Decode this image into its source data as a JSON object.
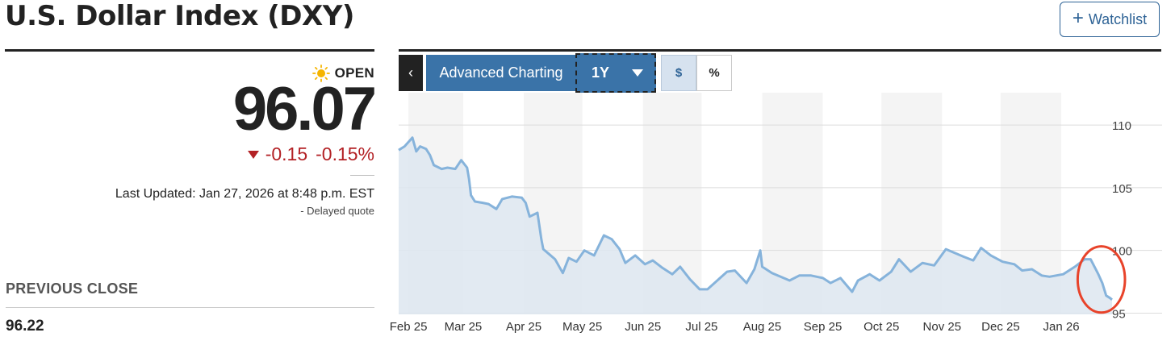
{
  "header": {
    "title": "U.S. Dollar Index (DXY)",
    "watchlist_label": "Watchlist",
    "watchlist_icon": "plus-icon"
  },
  "quote": {
    "status_icon": "sun-icon",
    "status": "OPEN",
    "price": "96.07",
    "change": "-0.15",
    "change_percent": "-0.15%",
    "direction_icon": "down-triangle-icon",
    "last_updated": "Last Updated: Jan 27, 2026 at 8:48 p.m. EST",
    "delayed": "-  Delayed quote",
    "previous_close_label": "PREVIOUS CLOSE",
    "previous_close": "96.22"
  },
  "chart_controls": {
    "back_label": "‹",
    "advanced_label": "Advanced Charting",
    "range_label": "1Y",
    "dollar_label": "$",
    "percent_label": "%"
  },
  "colors": {
    "accent": "#3a73a8",
    "negative": "#b32125",
    "line": "#86b3db",
    "area": "#dde6f0",
    "highlight": "#e8432a"
  },
  "chart_data": {
    "type": "area",
    "title": "",
    "xlabel": "",
    "ylabel": "",
    "x_ticks": [
      "Feb 25",
      "Mar 25",
      "Apr 25",
      "May 25",
      "Jun 25",
      "Jul 25",
      "Aug 25",
      "Sep 25",
      "Oct 25",
      "Nov 25",
      "Dec 25",
      "Jan 26"
    ],
    "y_ticks": [
      95,
      100,
      105,
      110
    ],
    "ylim": [
      94.9,
      111.1
    ],
    "xlim": [
      "2025-01-27",
      "2026-01-27"
    ],
    "grid": "horizontal",
    "annotation": "red circle around latest decline",
    "series": [
      {
        "x": [
          "2025-01-27",
          "2025-01-30",
          "2025-02-03",
          "2025-02-05",
          "2025-02-07",
          "2025-02-10",
          "2025-02-12",
          "2025-02-14",
          "2025-02-18",
          "2025-02-21",
          "2025-02-25",
          "2025-02-28",
          "2025-03-03",
          "2025-03-04",
          "2025-03-05",
          "2025-03-07",
          "2025-03-11",
          "2025-03-14",
          "2025-03-18",
          "2025-03-21",
          "2025-03-26",
          "2025-03-31",
          "2025-04-02",
          "2025-04-04",
          "2025-04-08",
          "2025-04-10",
          "2025-04-11",
          "2025-04-14",
          "2025-04-17",
          "2025-04-21",
          "2025-04-24",
          "2025-04-28",
          "2025-05-02",
          "2025-05-07",
          "2025-05-12",
          "2025-05-16",
          "2025-05-20",
          "2025-05-23",
          "2025-05-28",
          "2025-06-02",
          "2025-06-06",
          "2025-06-11",
          "2025-06-16",
          "2025-06-20",
          "2025-06-25",
          "2025-06-30",
          "2025-07-04",
          "2025-07-09",
          "2025-07-14",
          "2025-07-18",
          "2025-07-24",
          "2025-07-28",
          "2025-07-31",
          "2025-08-01",
          "2025-08-06",
          "2025-08-12",
          "2025-08-15",
          "2025-08-20",
          "2025-08-26",
          "2025-09-01",
          "2025-09-05",
          "2025-09-10",
          "2025-09-16",
          "2025-09-19",
          "2025-09-25",
          "2025-09-30",
          "2025-10-06",
          "2025-10-10",
          "2025-10-16",
          "2025-10-22",
          "2025-10-28",
          "2025-11-03",
          "2025-11-06",
          "2025-11-12",
          "2025-11-17",
          "2025-11-21",
          "2025-11-26",
          "2025-12-02",
          "2025-12-08",
          "2025-12-12",
          "2025-12-17",
          "2025-12-22",
          "2025-12-26",
          "2026-01-02",
          "2026-01-08",
          "2026-01-13",
          "2026-01-16",
          "2026-01-20",
          "2026-01-22",
          "2026-01-24",
          "2026-01-26",
          "2026-01-27"
        ],
        "values": [
          108.0,
          108.3,
          109.0,
          107.9,
          108.3,
          108.1,
          107.6,
          106.8,
          106.5,
          106.6,
          106.5,
          107.2,
          106.6,
          105.7,
          104.4,
          103.9,
          103.8,
          103.7,
          103.3,
          104.1,
          104.3,
          104.2,
          103.8,
          102.7,
          103.0,
          100.9,
          100.1,
          99.7,
          99.3,
          98.2,
          99.4,
          99.1,
          100.0,
          99.6,
          101.2,
          100.9,
          100.1,
          99.0,
          99.6,
          98.9,
          99.2,
          98.6,
          98.1,
          98.7,
          97.7,
          96.9,
          96.9,
          97.6,
          98.3,
          98.4,
          97.4,
          98.5,
          100.0,
          98.7,
          98.2,
          97.8,
          97.6,
          98.0,
          98.0,
          97.8,
          97.4,
          97.8,
          96.7,
          97.6,
          98.1,
          97.6,
          98.3,
          99.3,
          98.3,
          99.0,
          98.8,
          100.1,
          99.9,
          99.5,
          99.2,
          100.2,
          99.6,
          99.1,
          98.9,
          98.4,
          98.5,
          98.0,
          97.9,
          98.1,
          98.7,
          99.3,
          99.3,
          98.1,
          97.4,
          96.4,
          96.2,
          96.07
        ]
      }
    ]
  }
}
